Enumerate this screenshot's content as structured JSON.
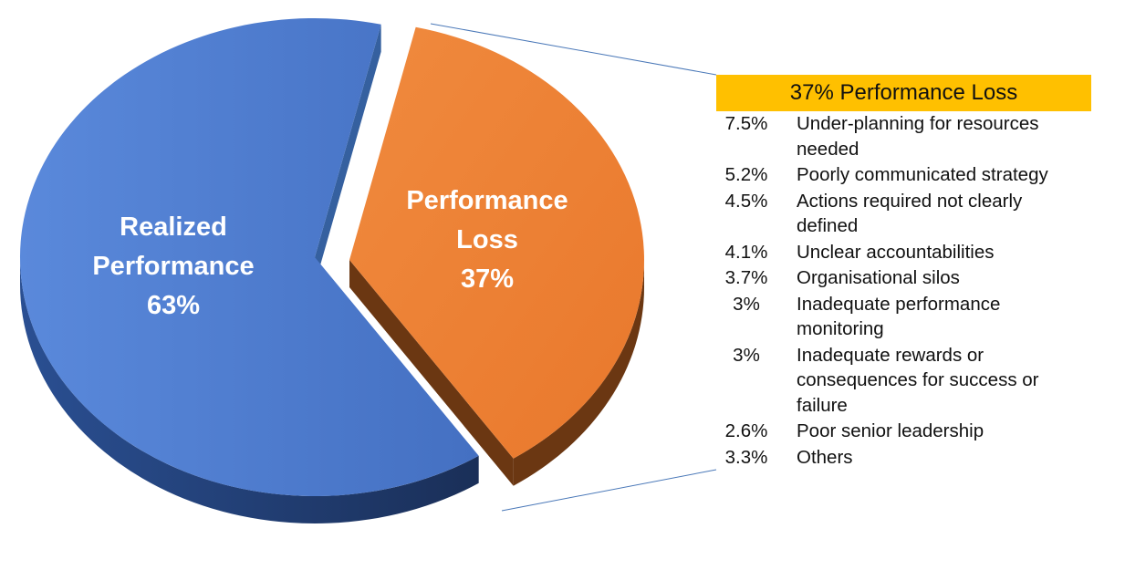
{
  "chart_data": {
    "type": "pie",
    "style": "3d-exploded",
    "slices": [
      {
        "label_lines": [
          "Realized",
          "Performance"
        ],
        "value": 63,
        "value_label": "63%",
        "color": "#4472c4",
        "side_color": "#1f3a6e"
      },
      {
        "label_lines": [
          "Performance",
          "Loss"
        ],
        "value": 37,
        "value_label": "37%",
        "color": "#ed7d31",
        "side_color": "#6b3712",
        "exploded": true
      }
    ],
    "breakdown": {
      "title": "37% Performance Loss",
      "title_color": "#ffc000",
      "items": [
        {
          "pct": "7.5%",
          "label": "Under-planning for resources needed"
        },
        {
          "pct": "5.2%",
          "label": "Poorly communicated strategy"
        },
        {
          "pct": "4.5%",
          "label": "Actions required not clearly defined"
        },
        {
          "pct": "4.1%",
          "label": "Unclear accountabilities"
        },
        {
          "pct": "3.7%",
          "label": "Organisational silos"
        },
        {
          "pct": "3%",
          "label": "Inadequate performance monitoring"
        },
        {
          "pct": "3%",
          "label": "Inadequate rewards or consequences for success or failure"
        },
        {
          "pct": "2.6%",
          "label": "Poor senior leadership"
        },
        {
          "pct": "3.3%",
          "label": "Others"
        }
      ]
    }
  }
}
